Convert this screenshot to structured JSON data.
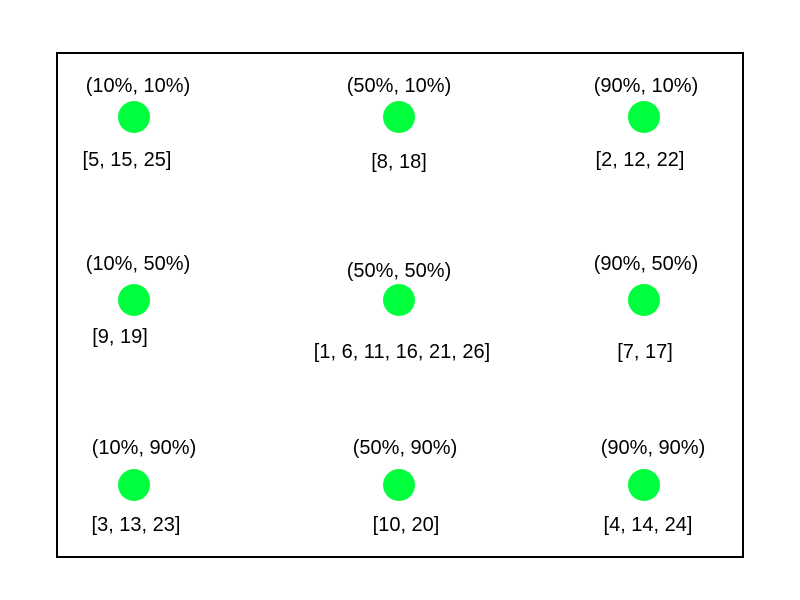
{
  "colors": {
    "dot": "#00ff3c",
    "frame": "#000000",
    "text": "#000000",
    "background": "#ffffff"
  },
  "points": [
    {
      "coord": "(10%, 10%)",
      "ids": "[5, 15, 25]"
    },
    {
      "coord": "(50%, 10%)",
      "ids": "[8, 18]"
    },
    {
      "coord": "(90%, 10%)",
      "ids": "[2, 12, 22]"
    },
    {
      "coord": "(10%, 50%)",
      "ids": "[9, 19]"
    },
    {
      "coord": "(50%, 50%)",
      "ids": "[1, 6, 11, 16, 21, 26]"
    },
    {
      "coord": "(90%, 50%)",
      "ids": "[7, 17]"
    },
    {
      "coord": "(10%, 90%)",
      "ids": "[3, 13, 23]"
    },
    {
      "coord": "(50%, 90%)",
      "ids": "[10, 20]"
    },
    {
      "coord": "(90%, 90%)",
      "ids": "[4, 14, 24]"
    }
  ]
}
